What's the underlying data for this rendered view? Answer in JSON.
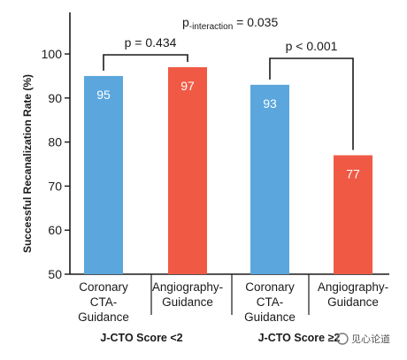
{
  "chart_data": {
    "type": "bar",
    "ylabel": "Successful Recanalization Rate (%)",
    "xlabel": "",
    "ylim": [
      50,
      100
    ],
    "yticks": [
      50,
      60,
      70,
      80,
      90,
      100
    ],
    "grid": false,
    "groups": [
      {
        "label": "J-CTO Score <2",
        "bars": [
          {
            "category": [
              "Coronary",
              "CTA-",
              "Guidance"
            ],
            "value": 95,
            "label": "95",
            "color": "#5aa6dd"
          },
          {
            "category": [
              "Angiography-",
              "Guidance"
            ],
            "value": 97,
            "label": "97",
            "color": "#f05a45"
          }
        ],
        "comparison": "p = 0.434"
      },
      {
        "label": "J-CTO Score ≥2",
        "bars": [
          {
            "category": [
              "Coronary",
              "CTA-",
              "Guidance"
            ],
            "value": 93,
            "label": "93",
            "color": "#5aa6dd"
          },
          {
            "category": [
              "Angiography-",
              "Guidance"
            ],
            "value": 77,
            "label": "77",
            "color": "#f05a45"
          }
        ],
        "comparison": "p < 0.001"
      }
    ],
    "interaction": {
      "prefix": "p",
      "subscript": "-interaction",
      "suffix": " = 0.035"
    }
  },
  "watermark": "见心论道",
  "colors": {
    "cta": "#5aa6dd",
    "angio": "#f05a45",
    "axis": "#1a1a1a"
  }
}
